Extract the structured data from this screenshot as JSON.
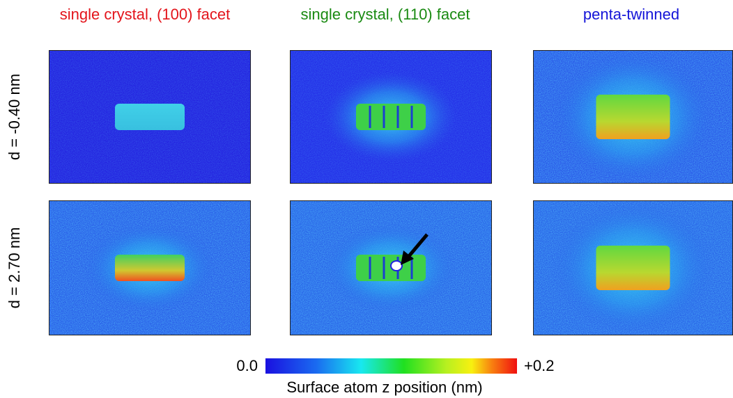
{
  "columns": [
    {
      "title": "single crystal, (100) facet",
      "color": "#e3141b"
    },
    {
      "title": "single crystal, (110) facet",
      "color": "#1a8a12"
    },
    {
      "title": "penta-twinned",
      "color": "#1414d8"
    }
  ],
  "rows": [
    {
      "label": "d = -0.40 nm"
    },
    {
      "label": "d = 2.70 nm"
    }
  ],
  "colorbar": {
    "min_label": "0.0",
    "max_label": "+0.2",
    "label": "Surface atom z position (nm)"
  }
}
